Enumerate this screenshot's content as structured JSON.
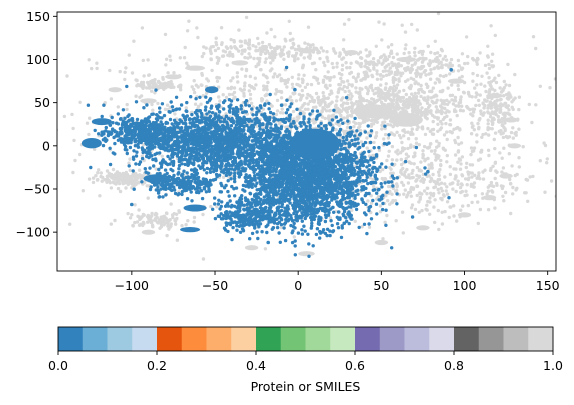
{
  "chart_data": {
    "type": "scatter",
    "xlim": [
      -145,
      155
    ],
    "ylim": [
      -145,
      155
    ],
    "x_ticks": [
      "−100",
      "−50",
      "0",
      "50",
      "100",
      "150"
    ],
    "x_tick_values": [
      -100,
      -50,
      0,
      50,
      100,
      150
    ],
    "y_ticks": [
      "−100",
      "−50",
      "0",
      "50",
      "100",
      "150"
    ],
    "y_tick_values": [
      -100,
      -50,
      0,
      50,
      100,
      150
    ],
    "grid": false,
    "series": [
      {
        "color": "#d9d9d9",
        "clusters": [
          {
            "cx": 10,
            "cy": 30,
            "rx": 130,
            "ry": 95,
            "n": 1300
          },
          {
            "cx": 55,
            "cy": 45,
            "rx": 45,
            "ry": 28,
            "n": 500
          },
          {
            "cx": 80,
            "cy": -40,
            "rx": 55,
            "ry": 45,
            "n": 350
          },
          {
            "cx": -105,
            "cy": -38,
            "rx": 18,
            "ry": 10,
            "n": 160
          },
          {
            "cx": -85,
            "cy": 70,
            "rx": 12,
            "ry": 6,
            "n": 90
          },
          {
            "cx": 65,
            "cy": 95,
            "rx": 40,
            "ry": 18,
            "n": 200
          },
          {
            "cx": -20,
            "cy": 110,
            "rx": 40,
            "ry": 14,
            "n": 160
          },
          {
            "cx": 120,
            "cy": 40,
            "rx": 15,
            "ry": 40,
            "n": 160
          },
          {
            "cx": -85,
            "cy": -85,
            "rx": 20,
            "ry": 10,
            "n": 100
          }
        ],
        "blobs": [
          {
            "x": -62,
            "y": 90,
            "rx": 6,
            "ry": 3
          },
          {
            "x": -35,
            "y": 96,
            "rx": 5,
            "ry": 3
          },
          {
            "x": -75,
            "y": 80,
            "rx": 5,
            "ry": 3
          },
          {
            "x": 5,
            "y": 110,
            "rx": 5,
            "ry": 3
          },
          {
            "x": 32,
            "y": 108,
            "rx": 4,
            "ry": 3
          },
          {
            "x": 65,
            "y": 100,
            "rx": 6,
            "ry": 3
          },
          {
            "x": 95,
            "y": 75,
            "rx": 5,
            "ry": 3
          },
          {
            "x": 118,
            "y": 58,
            "rx": 5,
            "ry": 3
          },
          {
            "x": 128,
            "y": 30,
            "rx": 4,
            "ry": 3
          },
          {
            "x": 130,
            "y": 0,
            "rx": 4,
            "ry": 3
          },
          {
            "x": 125,
            "y": -35,
            "rx": 4,
            "ry": 3
          },
          {
            "x": 115,
            "y": -60,
            "rx": 4,
            "ry": 3
          },
          {
            "x": 100,
            "y": -80,
            "rx": 4,
            "ry": 3
          },
          {
            "x": 75,
            "y": -95,
            "rx": 4,
            "ry": 3
          },
          {
            "x": 50,
            "y": -112,
            "rx": 4,
            "ry": 3
          },
          {
            "x": 5,
            "y": -125,
            "rx": 5,
            "ry": 3
          },
          {
            "x": -28,
            "y": -118,
            "rx": 4,
            "ry": 3
          },
          {
            "x": -90,
            "y": -100,
            "rx": 4,
            "ry": 3
          },
          {
            "x": -110,
            "y": 65,
            "rx": 4,
            "ry": 3
          },
          {
            "x": -90,
            "y": 52,
            "rx": 5,
            "ry": 3
          },
          {
            "x": 45,
            "y": 40,
            "rx": 12,
            "ry": 8
          },
          {
            "x": 65,
            "y": 30,
            "rx": 10,
            "ry": 8
          }
        ]
      },
      {
        "color": "#3182bd",
        "clusters": [
          {
            "cx": 5,
            "cy": -35,
            "rx": 40,
            "ry": 55,
            "n": 2600
          },
          {
            "cx": -50,
            "cy": 5,
            "rx": 45,
            "ry": 40,
            "n": 1600
          },
          {
            "cx": -95,
            "cy": 15,
            "rx": 22,
            "ry": 18,
            "n": 350
          },
          {
            "cx": -30,
            "cy": -80,
            "rx": 18,
            "ry": 18,
            "n": 250
          },
          {
            "cx": -70,
            "cy": -45,
            "rx": 20,
            "ry": 12,
            "n": 200
          }
        ],
        "blobs": [
          {
            "x": -124,
            "y": 3,
            "rx": 6,
            "ry": 6
          },
          {
            "x": -85,
            "y": -38,
            "rx": 8,
            "ry": 5
          },
          {
            "x": -62,
            "y": -72,
            "rx": 7,
            "ry": 4
          },
          {
            "x": -65,
            "y": -97,
            "rx": 6,
            "ry": 3
          },
          {
            "x": -52,
            "y": 65,
            "rx": 4,
            "ry": 4
          },
          {
            "x": -118,
            "y": 28,
            "rx": 6,
            "ry": 4
          },
          {
            "x": 10,
            "y": 2,
            "rx": 15,
            "ry": 18
          }
        ],
        "points": [
          [
            92,
            88
          ],
          [
            -2,
            65
          ],
          [
            -10,
            47
          ],
          [
            12,
            35
          ],
          [
            24,
            28
          ],
          [
            78,
            -30
          ],
          [
            -18,
            -112
          ],
          [
            -100,
            -68
          ]
        ]
      }
    ]
  },
  "colorbar": {
    "label": "Protein or SMILES",
    "ticks": [
      "0.0",
      "0.2",
      "0.4",
      "0.6",
      "0.8",
      "1.0"
    ],
    "tick_values": [
      0,
      0.2,
      0.4,
      0.6,
      0.8,
      1.0
    ],
    "colors": [
      "#3182bd",
      "#6baed6",
      "#9ecae1",
      "#c6dbef",
      "#e6550d",
      "#fd8d3c",
      "#fdae6b",
      "#fdd0a2",
      "#31a354",
      "#74c476",
      "#a1d99b",
      "#c7e9c0",
      "#756bb1",
      "#9e9ac8",
      "#bcbddc",
      "#dadaeb",
      "#636363",
      "#969696",
      "#bdbdbd",
      "#d9d9d9"
    ]
  }
}
